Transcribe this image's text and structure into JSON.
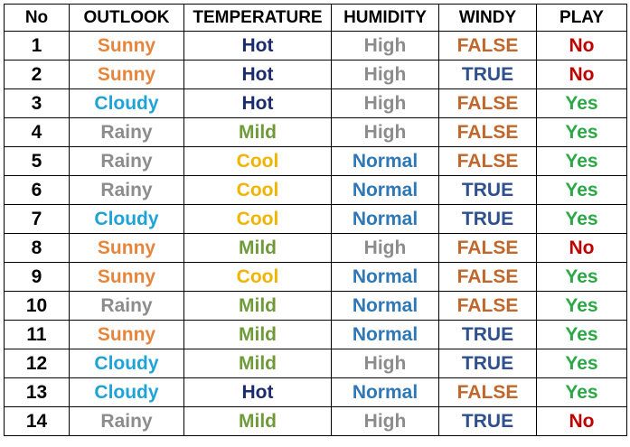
{
  "table": {
    "headers": [
      "No",
      "OUTLOOK",
      "TEMPERATURE",
      "HUMIDITY",
      "WINDY",
      "PLAY"
    ],
    "rows": [
      [
        "1",
        "Sunny",
        "Hot",
        "High",
        "FALSE",
        "No"
      ],
      [
        "2",
        "Sunny",
        "Hot",
        "High",
        "TRUE",
        "No"
      ],
      [
        "3",
        "Cloudy",
        "Hot",
        "High",
        "FALSE",
        "Yes"
      ],
      [
        "4",
        "Rainy",
        "Mild",
        "High",
        "FALSE",
        "Yes"
      ],
      [
        "5",
        "Rainy",
        "Cool",
        "Normal",
        "FALSE",
        "Yes"
      ],
      [
        "6",
        "Rainy",
        "Cool",
        "Normal",
        "TRUE",
        "Yes"
      ],
      [
        "7",
        "Cloudy",
        "Cool",
        "Normal",
        "TRUE",
        "Yes"
      ],
      [
        "8",
        "Sunny",
        "Mild",
        "High",
        "FALSE",
        "No"
      ],
      [
        "9",
        "Sunny",
        "Cool",
        "Normal",
        "FALSE",
        "Yes"
      ],
      [
        "10",
        "Rainy",
        "Mild",
        "Normal",
        "FALSE",
        "Yes"
      ],
      [
        "11",
        "Sunny",
        "Mild",
        "Normal",
        "TRUE",
        "Yes"
      ],
      [
        "12",
        "Cloudy",
        "Mild",
        "High",
        "TRUE",
        "Yes"
      ],
      [
        "13",
        "Cloudy",
        "Hot",
        "Normal",
        "FALSE",
        "Yes"
      ],
      [
        "14",
        "Rainy",
        "Mild",
        "High",
        "TRUE",
        "No"
      ]
    ]
  },
  "colors": {
    "Sunny": "#e8853c",
    "Cloudy": "#1fa3d6",
    "Rainy": "#8c8c8c",
    "Hot": "#1a2c6b",
    "Mild": "#6f9a3a",
    "Cool": "#f0b400",
    "High": "#8c8c8c",
    "Normal": "#2e78b7",
    "FALSE": "#c0672b",
    "TRUE": "#2f4f8f",
    "Yes": "#2aa845",
    "No": "#c00000"
  }
}
